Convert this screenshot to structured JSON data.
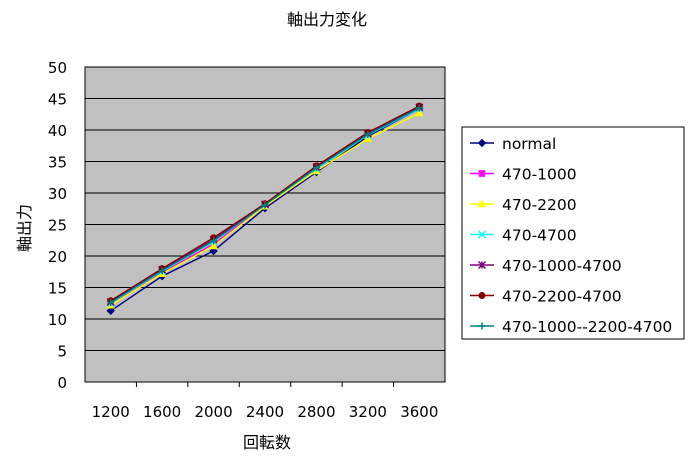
{
  "chart_data": {
    "type": "line",
    "title": "軸出力変化",
    "xlabel": "回転数",
    "ylabel": "軸出力",
    "ylim": [
      0,
      50
    ],
    "yticks": [
      "0",
      "5",
      "10",
      "15",
      "20",
      "25",
      "30",
      "35",
      "40",
      "45",
      "50"
    ],
    "categories": [
      "1200",
      "1600",
      "2000",
      "2400",
      "2800",
      "3200",
      "3600"
    ],
    "grid": true,
    "legend_position": "right",
    "plot_background": "#c0c0c0",
    "series": [
      {
        "name": "normal",
        "color": "#000080",
        "marker": "diamond",
        "values": [
          11.3,
          16.8,
          20.8,
          27.6,
          33.3,
          39.0,
          43.4
        ]
      },
      {
        "name": "470-1000",
        "color": "#ff00ff",
        "marker": "square",
        "values": [
          12.3,
          17.4,
          21.9,
          28.0,
          33.9,
          39.3,
          43.6
        ]
      },
      {
        "name": "470-2200",
        "color": "#ffff00",
        "marker": "triangle",
        "values": [
          12.2,
          17.2,
          21.6,
          27.9,
          33.5,
          38.6,
          42.7
        ]
      },
      {
        "name": "470-4700",
        "color": "#00ffff",
        "marker": "x",
        "values": [
          12.5,
          17.6,
          22.3,
          28.1,
          33.9,
          39.2,
          43.4
        ]
      },
      {
        "name": "470-1000-4700",
        "color": "#800080",
        "marker": "star",
        "values": [
          12.7,
          17.8,
          22.6,
          28.2,
          34.1,
          39.4,
          43.6
        ]
      },
      {
        "name": "470-2200-4700",
        "color": "#800000",
        "marker": "circle",
        "values": [
          12.9,
          18.0,
          22.9,
          28.3,
          34.3,
          39.6,
          43.8
        ]
      },
      {
        "name": "470-1000--2200-4700",
        "color": "#008080",
        "marker": "plus",
        "values": [
          12.6,
          17.7,
          22.4,
          28.1,
          34.0,
          39.3,
          43.5
        ]
      }
    ]
  }
}
